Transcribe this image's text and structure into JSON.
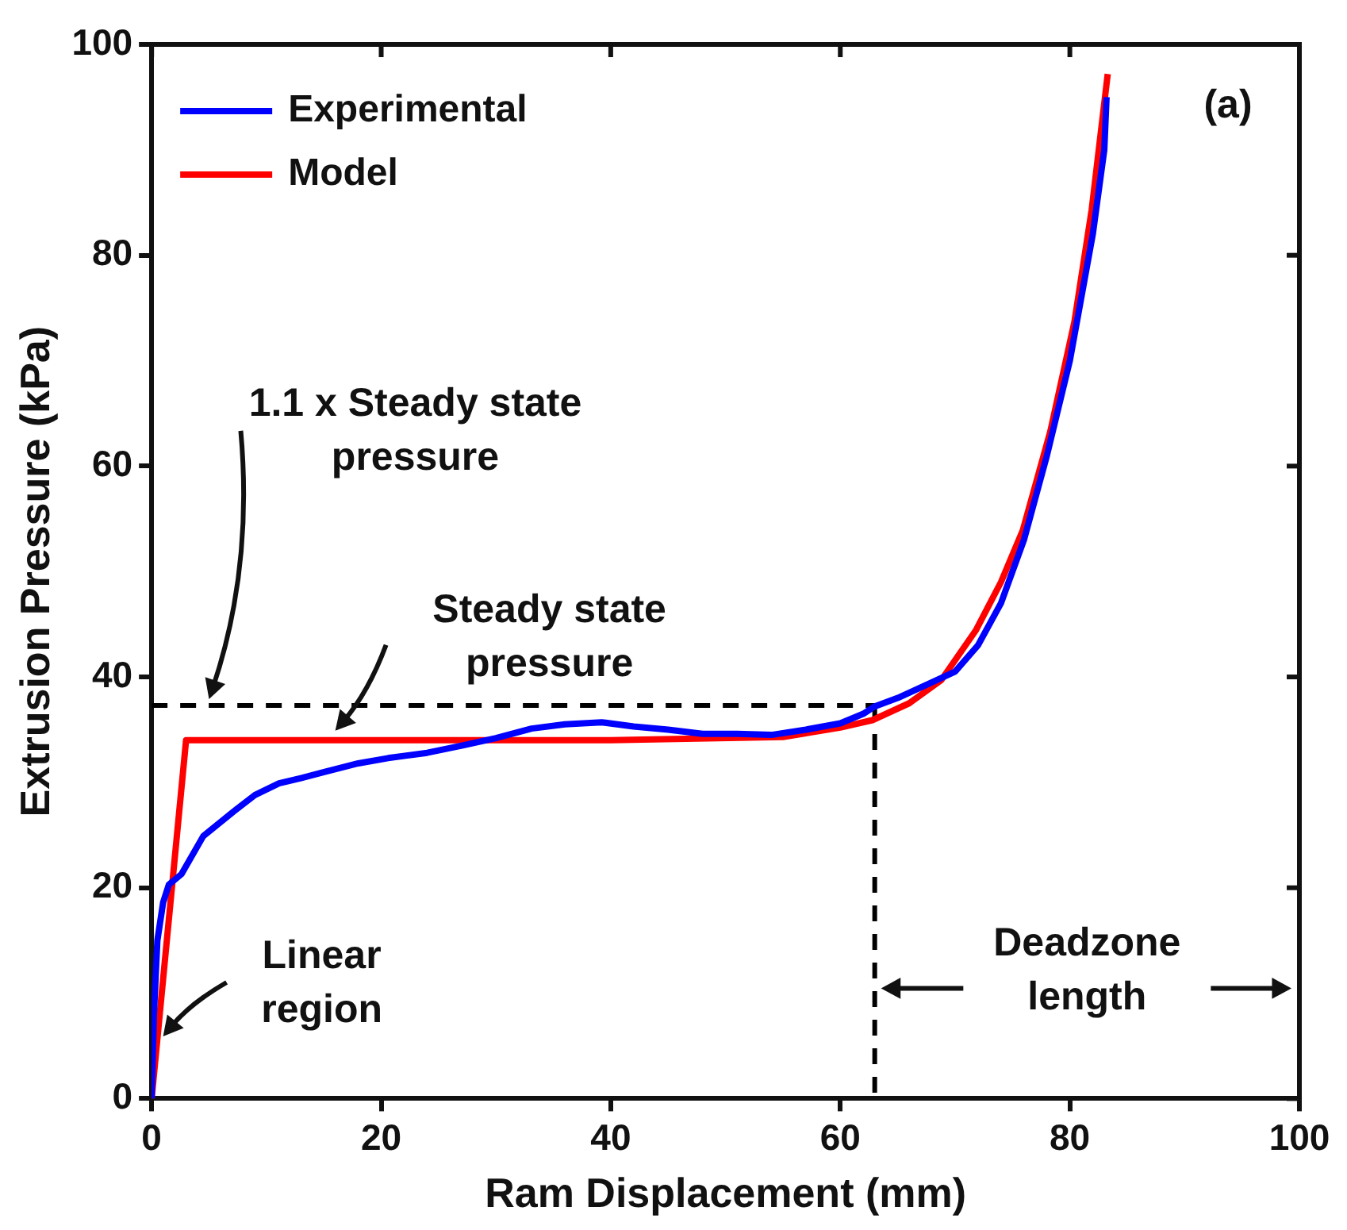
{
  "chart_data": {
    "type": "line",
    "xlabel": "Ram Displacement (mm)",
    "ylabel": "Extrusion Pressure (kPa)",
    "xlim": [
      0,
      100
    ],
    "xticks": [
      0,
      20,
      40,
      60,
      80,
      100
    ],
    "ylim": [
      0,
      100
    ],
    "yticks": [
      0,
      20,
      40,
      60,
      80,
      100
    ],
    "grid": false,
    "legend": "top left",
    "marker": "none",
    "series": [
      {
        "name": "Experimental",
        "color": "#0000ff",
        "x": [
          0,
          0.2,
          0.5,
          1,
          1.5,
          2.6,
          4.5,
          7.1,
          9,
          11.1,
          13,
          15.1,
          18,
          20.6,
          24,
          27.1,
          30,
          33.1,
          36,
          39.2,
          42,
          45,
          48,
          51,
          54,
          57,
          60,
          62,
          63,
          65,
          67,
          70,
          72,
          74,
          76,
          78,
          80,
          81,
          82,
          83,
          83.2
        ],
        "values": [
          0,
          8,
          15,
          18.6,
          20.3,
          21.3,
          24.9,
          27.2,
          28.8,
          29.9,
          30.4,
          31,
          31.8,
          32.3,
          32.8,
          33.5,
          34.2,
          35.1,
          35.5,
          35.7,
          35.3,
          35,
          34.6,
          34.6,
          34.5,
          35,
          35.6,
          36.5,
          37.2,
          38,
          39,
          40.5,
          43,
          47,
          53,
          61,
          70,
          76,
          82,
          90,
          95
        ]
      },
      {
        "name": "Model",
        "color": "#ff0000",
        "x": [
          0,
          3,
          40,
          55,
          60,
          62.8,
          66,
          68.8,
          71.8,
          74,
          75.9,
          78.3,
          80.4,
          81.9,
          83.3
        ],
        "values": [
          0,
          34,
          34,
          34.3,
          35.2,
          35.9,
          37.5,
          39.7,
          44.4,
          49,
          53.9,
          63.3,
          73.7,
          84.3,
          97.2
        ]
      },
      {
        "color": "#000000",
        "line_style": "dashed",
        "x": [
          0,
          63
        ],
        "values": [
          37.3,
          37.3
        ]
      },
      {
        "color": "#000000",
        "line_style": "dashed",
        "x": [
          63,
          63
        ],
        "values": [
          37.3,
          0
        ]
      }
    ],
    "annotations": [
      "1.1 x Steady state pressure",
      {
        "text": "Steady state pressure",
        "x": 16,
        "y": 34
      },
      {
        "text": "Linear region",
        "x": 1,
        "y": 5
      },
      "Deadzone length",
      "(a)"
    ]
  }
}
